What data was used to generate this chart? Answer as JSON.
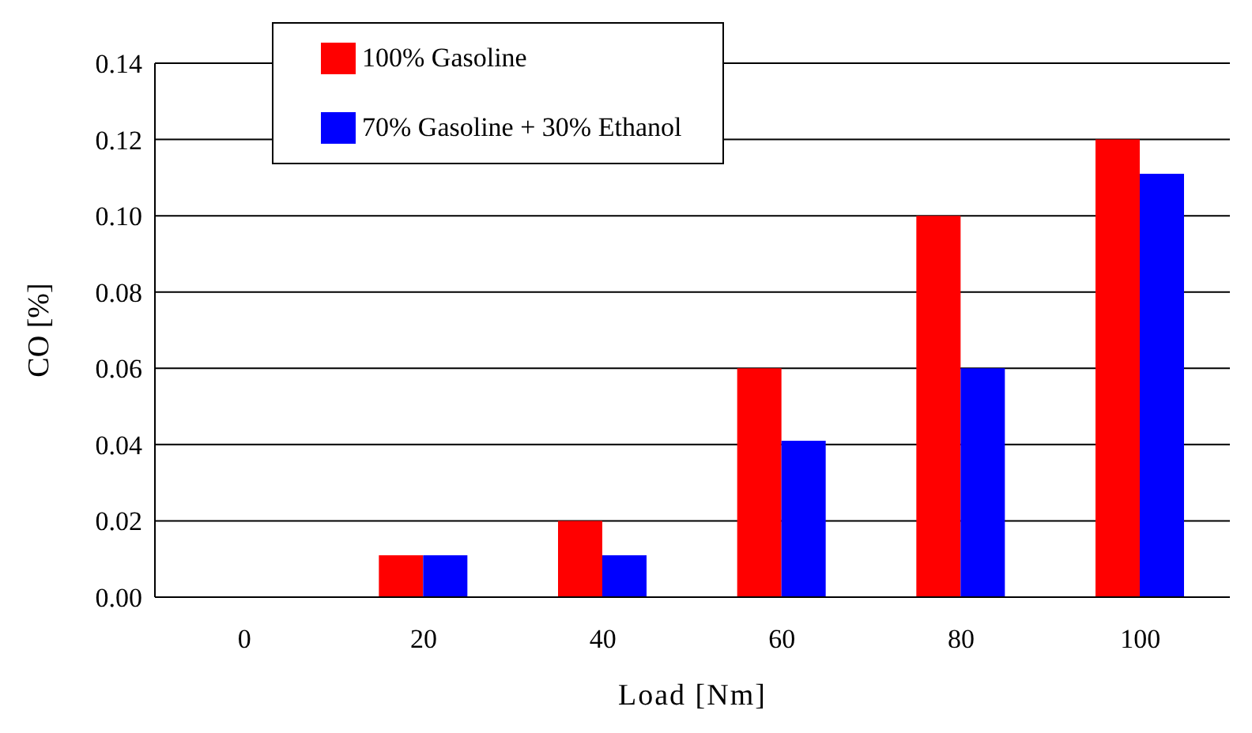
{
  "chart_data": {
    "type": "bar",
    "xlabel": "Load [Nm]",
    "ylabel": "CO [%]",
    "categories": [
      "0",
      "20",
      "40",
      "60",
      "80",
      "100"
    ],
    "series": [
      {
        "name": "100% Gasoline",
        "color": "#ff0000",
        "values": [
          0,
          0.011,
          0.02,
          0.06,
          0.1,
          0.12
        ]
      },
      {
        "name": "70% Gasoline + 30% Ethanol",
        "color": "#0000ff",
        "values": [
          0,
          0.011,
          0.011,
          0.041,
          0.06,
          0.111
        ]
      }
    ],
    "ylim": [
      0,
      0.14
    ],
    "yticks": [
      {
        "value": 0,
        "label": "0.00"
      },
      0.02,
      0.04,
      0.06,
      0.08,
      {
        "value": 0.1,
        "label": "0.10"
      },
      0.12,
      0.14
    ],
    "grid": "y",
    "legend": "top left"
  }
}
